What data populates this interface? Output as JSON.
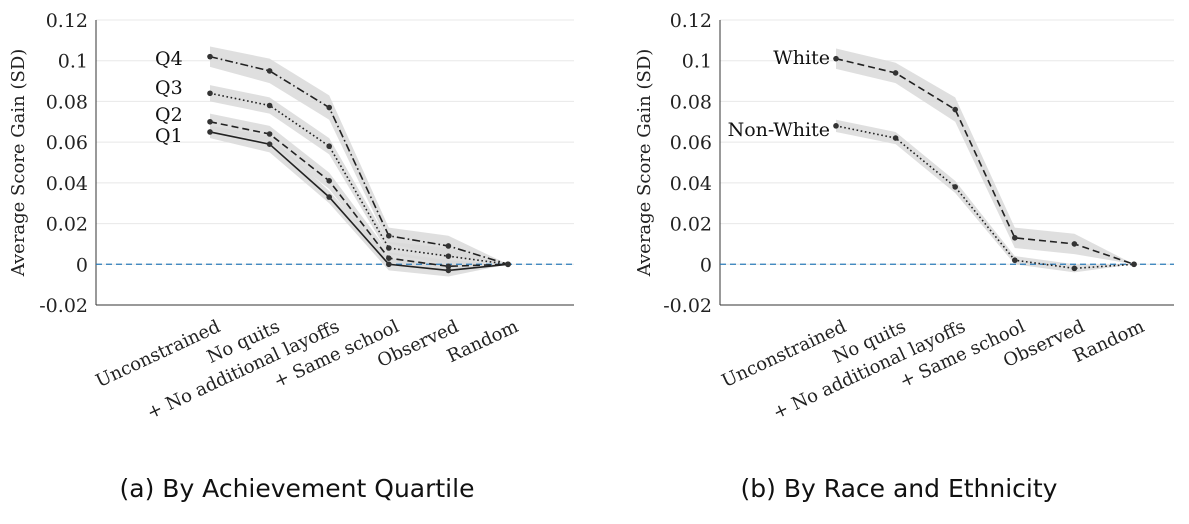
{
  "chart_data": [
    {
      "type": "line",
      "caption": "(a) By Achievement Quartile",
      "ylabel": "Average Score Gain (SD)",
      "ylim": [
        -0.02,
        0.12
      ],
      "yticks": [
        "-0.02",
        "0",
        "0.02",
        "0.04",
        "0.06",
        "0.08",
        "0.1",
        "0.12"
      ],
      "categories": [
        "Unconstrained",
        "No quits",
        "+ No additional layoffs",
        "+ Same school",
        "Observed",
        "Random"
      ],
      "grid": "horizontal",
      "reference_line": 0,
      "series": [
        {
          "name": "Q4",
          "style": "dashdot",
          "values": [
            0.102,
            0.095,
            0.077,
            0.014,
            0.009,
            0.0
          ],
          "band": [
            0.005,
            0.006,
            0.006,
            0.004,
            0.005,
            0.0
          ]
        },
        {
          "name": "Q3",
          "style": "dotted",
          "values": [
            0.084,
            0.078,
            0.058,
            0.008,
            0.004,
            0.0
          ],
          "band": [
            0.004,
            0.004,
            0.004,
            0.003,
            0.004,
            0.0
          ]
        },
        {
          "name": "Q2",
          "style": "dashed",
          "values": [
            0.07,
            0.064,
            0.041,
            0.003,
            -0.001,
            0.0
          ],
          "band": [
            0.004,
            0.004,
            0.004,
            0.003,
            0.003,
            0.0
          ]
        },
        {
          "name": "Q1",
          "style": "solid",
          "values": [
            0.065,
            0.059,
            0.033,
            0.0,
            -0.003,
            0.0
          ],
          "band": [
            0.003,
            0.004,
            0.003,
            0.003,
            0.003,
            0.0
          ]
        }
      ]
    },
    {
      "type": "line",
      "caption": "(b) By Race and Ethnicity",
      "ylabel": "Average Score Gain (SD)",
      "ylim": [
        -0.02,
        0.12
      ],
      "yticks": [
        "-0.02",
        "0",
        "0.02",
        "0.04",
        "0.06",
        "0.08",
        "0.1",
        "0.12"
      ],
      "categories": [
        "Unconstrained",
        "No quits",
        "+ No additional layoffs",
        "+ Same school",
        "Observed",
        "Random"
      ],
      "grid": "horizontal",
      "reference_line": 0,
      "series": [
        {
          "name": "White",
          "style": "dashed",
          "values": [
            0.101,
            0.094,
            0.076,
            0.013,
            0.01,
            0.0
          ],
          "band": [
            0.005,
            0.005,
            0.006,
            0.005,
            0.005,
            0.0
          ]
        },
        {
          "name": "Non-White",
          "style": "dotted",
          "values": [
            0.068,
            0.062,
            0.038,
            0.002,
            -0.002,
            0.0
          ],
          "band": [
            0.003,
            0.003,
            0.003,
            0.002,
            0.002,
            0.0
          ]
        }
      ]
    }
  ],
  "colors": {
    "band": "#d9d9d9",
    "line": "#222222",
    "grid": "#e8e8e8",
    "zero_line": "#2b7bb9",
    "axis": "#333333"
  }
}
